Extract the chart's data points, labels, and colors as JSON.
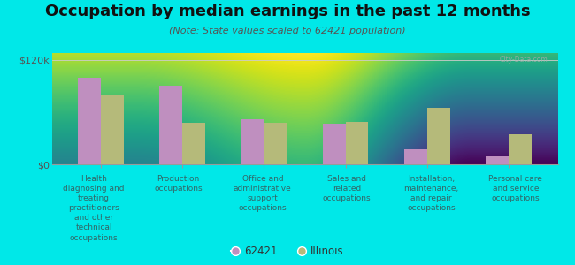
{
  "title": "Occupation by median earnings in the past 12 months",
  "subtitle": "(Note: State values scaled to 62421 population)",
  "categories": [
    "Health\ndiagnosing and\ntreating\npractitioners\nand other\ntechnical\noccupations",
    "Production\noccupations",
    "Office and\nadministrative\nsupport\noccupations",
    "Sales and\nrelated\noccupations",
    "Installation,\nmaintenance,\nand repair\noccupations",
    "Personal care\nand service\noccupations"
  ],
  "values_62421": [
    100000,
    90000,
    52000,
    47000,
    17000,
    9000
  ],
  "values_illinois": [
    80000,
    48000,
    48000,
    49000,
    65000,
    35000
  ],
  "color_62421": "#bf8fbf",
  "color_illinois": "#b5ba7a",
  "background_color": "#00e8e8",
  "plot_bg": "#e8f0d8",
  "ytick_labels": [
    "$0",
    "$120k"
  ],
  "ytick_values": [
    0,
    120000
  ],
  "ymax": 128000,
  "legend_label_1": "62421",
  "legend_label_2": "Illinois",
  "watermark": "City-Data.com",
  "title_fontsize": 13,
  "subtitle_fontsize": 8,
  "tick_label_fontsize": 6.5,
  "ytick_fontsize": 8
}
